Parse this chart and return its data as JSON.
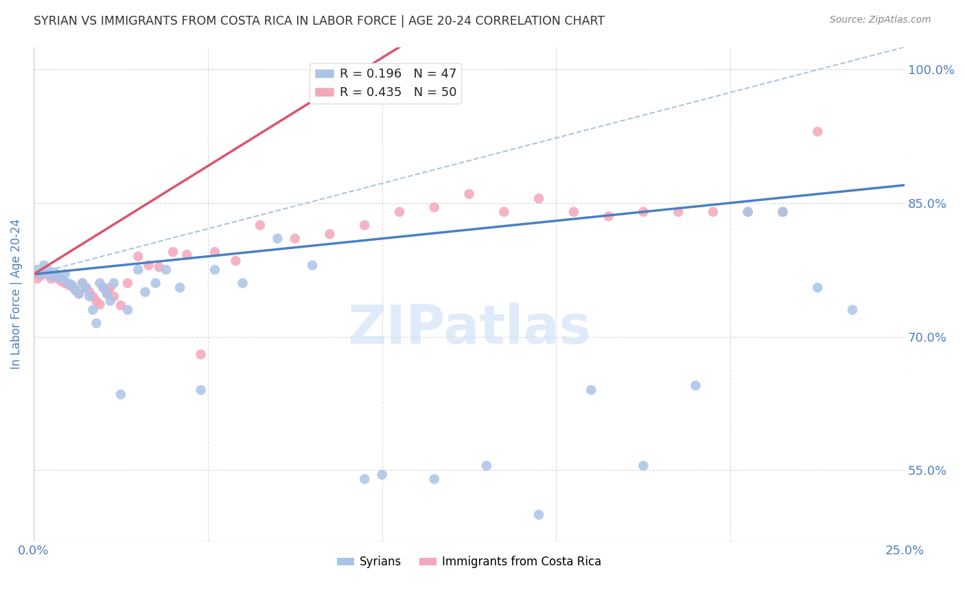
{
  "title": "SYRIAN VS IMMIGRANTS FROM COSTA RICA IN LABOR FORCE | AGE 20-24 CORRELATION CHART",
  "source": "Source: ZipAtlas.com",
  "ylabel": "In Labor Force | Age 20-24",
  "xlim": [
    0.0,
    0.25
  ],
  "ylim": [
    0.47,
    1.025
  ],
  "xticks": [
    0.0,
    0.05,
    0.1,
    0.15,
    0.2,
    0.25
  ],
  "xticklabels": [
    "0.0%",
    "",
    "",
    "",
    "",
    "25.0%"
  ],
  "yticks": [
    0.55,
    0.7,
    0.85,
    1.0
  ],
  "yticklabels": [
    "55.0%",
    "70.0%",
    "85.0%",
    "100.0%"
  ],
  "legend_entries": [
    {
      "label": "R = 0.196   N = 47",
      "color": "#aac4e8"
    },
    {
      "label": "R = 0.435   N = 50",
      "color": "#f4a7b9"
    }
  ],
  "syrians_x": [
    0.001,
    0.002,
    0.003,
    0.004,
    0.005,
    0.006,
    0.007,
    0.008,
    0.009,
    0.01,
    0.011,
    0.012,
    0.013,
    0.014,
    0.015,
    0.016,
    0.017,
    0.018,
    0.019,
    0.02,
    0.021,
    0.022,
    0.023,
    0.025,
    0.027,
    0.03,
    0.032,
    0.035,
    0.038,
    0.042,
    0.048,
    0.052,
    0.06,
    0.07,
    0.08,
    0.095,
    0.1,
    0.115,
    0.13,
    0.145,
    0.16,
    0.175,
    0.19,
    0.205,
    0.215,
    0.225,
    0.235
  ],
  "syrians_y": [
    0.775,
    0.77,
    0.78,
    0.775,
    0.768,
    0.772,
    0.768,
    0.765,
    0.77,
    0.76,
    0.758,
    0.752,
    0.748,
    0.76,
    0.755,
    0.745,
    0.73,
    0.715,
    0.76,
    0.755,
    0.748,
    0.74,
    0.76,
    0.635,
    0.73,
    0.775,
    0.75,
    0.76,
    0.775,
    0.755,
    0.64,
    0.775,
    0.76,
    0.81,
    0.78,
    0.54,
    0.545,
    0.54,
    0.555,
    0.5,
    0.64,
    0.555,
    0.645,
    0.84,
    0.84,
    0.755,
    0.73
  ],
  "costa_rica_x": [
    0.001,
    0.002,
    0.003,
    0.004,
    0.005,
    0.006,
    0.007,
    0.008,
    0.009,
    0.01,
    0.011,
    0.012,
    0.013,
    0.014,
    0.015,
    0.016,
    0.017,
    0.018,
    0.019,
    0.02,
    0.021,
    0.022,
    0.023,
    0.025,
    0.027,
    0.03,
    0.033,
    0.036,
    0.04,
    0.044,
    0.048,
    0.052,
    0.058,
    0.065,
    0.075,
    0.085,
    0.095,
    0.105,
    0.115,
    0.125,
    0.135,
    0.145,
    0.155,
    0.165,
    0.175,
    0.185,
    0.195,
    0.205,
    0.215,
    0.225
  ],
  "costa_rica_y": [
    0.765,
    0.768,
    0.772,
    0.77,
    0.765,
    0.768,
    0.765,
    0.762,
    0.76,
    0.758,
    0.756,
    0.752,
    0.748,
    0.76,
    0.755,
    0.75,
    0.745,
    0.74,
    0.736,
    0.755,
    0.75,
    0.755,
    0.745,
    0.735,
    0.76,
    0.79,
    0.78,
    0.778,
    0.795,
    0.792,
    0.68,
    0.795,
    0.785,
    0.825,
    0.81,
    0.815,
    0.825,
    0.84,
    0.845,
    0.86,
    0.84,
    0.855,
    0.84,
    0.835,
    0.84,
    0.84,
    0.84,
    0.84,
    0.84,
    0.93
  ],
  "blue_line_x0": 0.0,
  "blue_line_x1": 0.25,
  "blue_line_y0": 0.77,
  "blue_line_y1": 0.87,
  "pink_line_x0": 0.0,
  "pink_line_x1": 0.105,
  "pink_line_y0": 0.77,
  "pink_line_y1": 1.025,
  "dashed_line_x0": 0.0,
  "dashed_line_x1": 0.25,
  "dashed_line_y0": 0.77,
  "dashed_line_y1": 1.025,
  "watermark": "ZIPatlas",
  "dot_size": 110,
  "blue_dot_color": "#aac4e8",
  "pink_dot_color": "#f4a7b9",
  "blue_line_color": "#4a80c4",
  "pink_line_color": "#d9546a",
  "dashed_line_color": "#b0c4de",
  "grid_color": "#d8d8d8",
  "title_color": "#333333",
  "tick_color": "#4a80c4",
  "background_color": "#ffffff"
}
